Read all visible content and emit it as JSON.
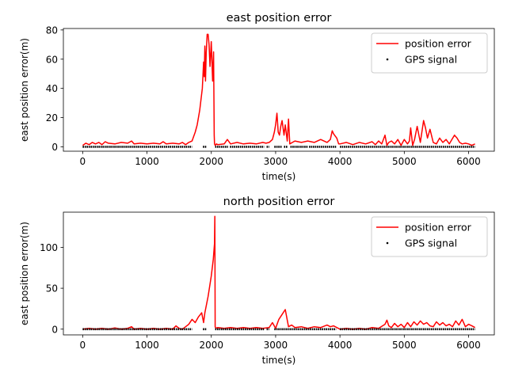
{
  "chart_data": [
    {
      "type": "line",
      "title": "east position error",
      "xlabel": "time(s)",
      "ylabel": "east position error(m)",
      "xlim": [
        -300,
        6400
      ],
      "ylim": [
        -3,
        81
      ],
      "xticks": [
        0,
        1000,
        2000,
        3000,
        4000,
        5000,
        6000
      ],
      "yticks": [
        0,
        20,
        40,
        60,
        80
      ],
      "legend_position": "top-right",
      "series": [
        {
          "name": "position error",
          "color": "#ff0000",
          "style": "line",
          "x": [
            0,
            50,
            100,
            150,
            200,
            250,
            300,
            350,
            400,
            500,
            600,
            700,
            760,
            800,
            900,
            1000,
            1100,
            1200,
            1250,
            1300,
            1400,
            1500,
            1550,
            1600,
            1650,
            1700,
            1750,
            1780,
            1820,
            1860,
            1880,
            1890,
            1900,
            1910,
            1920,
            1935,
            1950,
            1965,
            1980,
            2000,
            2020,
            2035,
            2045,
            2050,
            2060,
            2080,
            2100,
            2200,
            2250,
            2300,
            2400,
            2500,
            2600,
            2700,
            2800,
            2850,
            2900,
            2950,
            2980,
            3000,
            3020,
            3040,
            3060,
            3080,
            3100,
            3130,
            3150,
            3180,
            3200,
            3220,
            3260,
            3300,
            3400,
            3500,
            3600,
            3700,
            3800,
            3850,
            3880,
            3900,
            3950,
            3980,
            4000,
            4100,
            4200,
            4300,
            4400,
            4500,
            4550,
            4600,
            4650,
            4700,
            4730,
            4760,
            4800,
            4850,
            4900,
            4950,
            5000,
            5050,
            5080,
            5100,
            5130,
            5160,
            5200,
            5250,
            5300,
            5330,
            5360,
            5400,
            5450,
            5500,
            5550,
            5600,
            5650,
            5700,
            5740,
            5780,
            5820,
            5860,
            5900,
            5950,
            6000,
            6050,
            6100
          ],
          "values": [
            1,
            2.5,
            1.5,
            3,
            2,
            3,
            1.5,
            3.5,
            2.5,
            2,
            3,
            2.5,
            4,
            2,
            2.5,
            2,
            2.5,
            2,
            3.5,
            2,
            2.5,
            2,
            3,
            1.5,
            3,
            4,
            10,
            15,
            25,
            40,
            58,
            48,
            69,
            45,
            64,
            77,
            77,
            70,
            55,
            72,
            45,
            65,
            8,
            2,
            1,
            2,
            1.5,
            2,
            5,
            2,
            3,
            2,
            2.5,
            2,
            3,
            2.5,
            3,
            5,
            10,
            15,
            23,
            10,
            8,
            14,
            18,
            8,
            15,
            4,
            19,
            2,
            3,
            4,
            3,
            4,
            3,
            5,
            3,
            5,
            11,
            9,
            6,
            2,
            2,
            3,
            1.5,
            3,
            2,
            3.5,
            1.5,
            4,
            2,
            8,
            1,
            3,
            4,
            2,
            5,
            1,
            5,
            2,
            4,
            13,
            1,
            5,
            14,
            3,
            18,
            13,
            6,
            12,
            3,
            2,
            6,
            3,
            5,
            2,
            5,
            8,
            6,
            3,
            2,
            2.5,
            2,
            1,
            2
          ]
        },
        {
          "name": "GPS signal",
          "color": "#000000",
          "style": "points",
          "y": 0,
          "segments": [
            [
              0,
              1700
            ],
            [
              1870,
              1930
            ],
            [
              2060,
              2260
            ],
            [
              2290,
              2820
            ],
            [
              2860,
              2900
            ],
            [
              2980,
              3100
            ],
            [
              3130,
              3190
            ],
            [
              3230,
              3500
            ],
            [
              3520,
              3940
            ],
            [
              4000,
              6100
            ]
          ]
        }
      ]
    },
    {
      "type": "line",
      "title": "north position error",
      "xlabel": "time(s)",
      "ylabel": "east position error(m)",
      "xlim": [
        -300,
        6400
      ],
      "ylim": [
        -7,
        143
      ],
      "xticks": [
        0,
        1000,
        2000,
        3000,
        4000,
        5000,
        6000
      ],
      "yticks": [
        0,
        50,
        100
      ],
      "legend_position": "top-right",
      "series": [
        {
          "name": "position error",
          "color": "#ff0000",
          "style": "line",
          "x": [
            0,
            100,
            200,
            300,
            400,
            500,
            600,
            700,
            760,
            800,
            900,
            1000,
            1100,
            1200,
            1300,
            1400,
            1450,
            1500,
            1550,
            1600,
            1650,
            1700,
            1750,
            1800,
            1850,
            1880,
            1900,
            1950,
            2000,
            2030,
            2050,
            2055,
            2060,
            2070,
            2100,
            2200,
            2300,
            2400,
            2500,
            2600,
            2700,
            2800,
            2900,
            2950,
            3000,
            3050,
            3100,
            3150,
            3200,
            3250,
            3300,
            3400,
            3500,
            3600,
            3700,
            3800,
            3850,
            3900,
            3950,
            4000,
            4100,
            4200,
            4300,
            4400,
            4500,
            4600,
            4700,
            4730,
            4760,
            4800,
            4850,
            4900,
            4950,
            5000,
            5050,
            5100,
            5150,
            5200,
            5250,
            5300,
            5350,
            5400,
            5450,
            5500,
            5550,
            5600,
            5650,
            5700,
            5750,
            5800,
            5850,
            5900,
            5950,
            6000,
            6050,
            6100
          ],
          "values": [
            0,
            1,
            0,
            1,
            0,
            1.5,
            0,
            1,
            3,
            0,
            1,
            0,
            1,
            0,
            1,
            0,
            4,
            1,
            0,
            3,
            6,
            12,
            8,
            15,
            20,
            8,
            20,
            40,
            65,
            85,
            105,
            138,
            3,
            1,
            2,
            1,
            2,
            1,
            2,
            1,
            2,
            1,
            2,
            8,
            1,
            12,
            18,
            24,
            3,
            5,
            2,
            3,
            1,
            3,
            2,
            5,
            3,
            4,
            2,
            0,
            1,
            0,
            1,
            0,
            2,
            1,
            6,
            11,
            4,
            2,
            7,
            3,
            6,
            2,
            8,
            3,
            9,
            5,
            10,
            6,
            8,
            4,
            3,
            9,
            5,
            8,
            4,
            6,
            3,
            10,
            5,
            12,
            3,
            6,
            4,
            2
          ]
        },
        {
          "name": "GPS signal",
          "color": "#000000",
          "style": "points",
          "y": 0,
          "segments": [
            [
              0,
              1700
            ],
            [
              1870,
              1930
            ],
            [
              2060,
              2820
            ],
            [
              2860,
              2900
            ],
            [
              2980,
              3940
            ],
            [
              4000,
              6100
            ]
          ]
        }
      ]
    }
  ]
}
